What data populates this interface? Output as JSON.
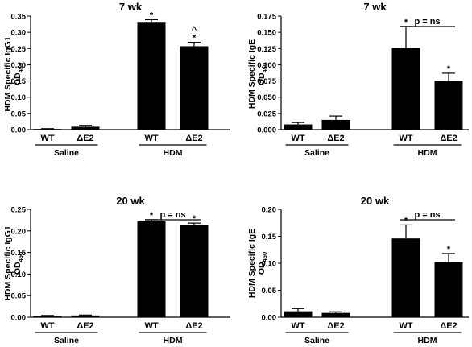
{
  "chart_data": [
    {
      "type": "bar",
      "title": "7 wk",
      "ylabel_line1": "HDM Specific IgG1",
      "ylabel_line2_main": "OD",
      "ylabel_line2_sub": "450",
      "ylim": [
        0,
        0.35
      ],
      "yticks": [
        "0.00",
        "0.05",
        "0.10",
        "0.15",
        "0.20",
        "0.25",
        "0.30",
        "0.35"
      ],
      "categories": [
        "WT",
        "ΔE2",
        "WT",
        "ΔE2"
      ],
      "groups": [
        {
          "label": "Saline",
          "span": [
            0,
            1
          ]
        },
        {
          "label": "HDM",
          "span": [
            2,
            3
          ]
        }
      ],
      "values": [
        0.002,
        0.009,
        0.332,
        0.257
      ],
      "errors": [
        0.001,
        0.004,
        0.007,
        0.012
      ],
      "marks": [
        "",
        "",
        "*",
        "^\n*"
      ],
      "bracket": null
    },
    {
      "type": "bar",
      "title": "7 wk",
      "ylabel_line1": "HDM Specific IgE",
      "ylabel_line2_main": "OD",
      "ylabel_line2_sub": "450",
      "ylim": [
        0,
        0.175
      ],
      "yticks": [
        "0.000",
        "0.025",
        "0.050",
        "0.075",
        "0.100",
        "0.125",
        "0.150",
        "0.175"
      ],
      "categories": [
        "WT",
        "ΔE2",
        "WT",
        "ΔE2"
      ],
      "groups": [
        {
          "label": "Saline",
          "span": [
            0,
            1
          ]
        },
        {
          "label": "HDM",
          "span": [
            2,
            3
          ]
        }
      ],
      "values": [
        0.008,
        0.015,
        0.126,
        0.075
      ],
      "errors": [
        0.003,
        0.006,
        0.033,
        0.012
      ],
      "marks": [
        "",
        "",
        "*",
        "*"
      ],
      "bracket": {
        "label": "p = ns",
        "from": 2,
        "to": 3
      }
    },
    {
      "type": "bar",
      "title": "20 wk",
      "ylabel_line1": "HDM Specific IgG1",
      "ylabel_line2_main": "OD",
      "ylabel_line2_sub": "450",
      "ylim": [
        0,
        0.25
      ],
      "yticks": [
        "0.00",
        "0.05",
        "0.10",
        "0.15",
        "0.20",
        "0.25"
      ],
      "categories": [
        "WT",
        "ΔE2",
        "WT",
        "ΔE2"
      ],
      "groups": [
        {
          "label": "Saline",
          "span": [
            0,
            1
          ]
        },
        {
          "label": "HDM",
          "span": [
            2,
            3
          ]
        }
      ],
      "values": [
        0.003,
        0.004,
        0.222,
        0.214
      ],
      "errors": [
        0.001,
        0.001,
        0.004,
        0.004
      ],
      "marks": [
        "",
        "",
        "*",
        "*"
      ],
      "bracket": {
        "label": "p = ns",
        "from": 2,
        "to": 3
      }
    },
    {
      "type": "bar",
      "title": "20 wk",
      "ylabel_line1": "HDM Specific IgE",
      "ylabel_line2_main": "OD",
      "ylabel_line2_sub": "450",
      "ylim": [
        0,
        0.2
      ],
      "yticks": [
        "0.00",
        "0.05",
        "0.10",
        "0.15",
        "0.20"
      ],
      "categories": [
        "WT",
        "ΔE2",
        "WT",
        "ΔE2"
      ],
      "groups": [
        {
          "label": "Saline",
          "span": [
            0,
            1
          ]
        },
        {
          "label": "HDM",
          "span": [
            2,
            3
          ]
        }
      ],
      "values": [
        0.011,
        0.008,
        0.146,
        0.102
      ],
      "errors": [
        0.005,
        0.002,
        0.025,
        0.016
      ],
      "marks": [
        "",
        "",
        "*",
        "*"
      ],
      "bracket": {
        "label": "p = ns",
        "from": 2,
        "to": 3
      }
    }
  ],
  "colors": {
    "bar_fill": "#000000",
    "axis": "#000000",
    "background": "#ffffff"
  }
}
